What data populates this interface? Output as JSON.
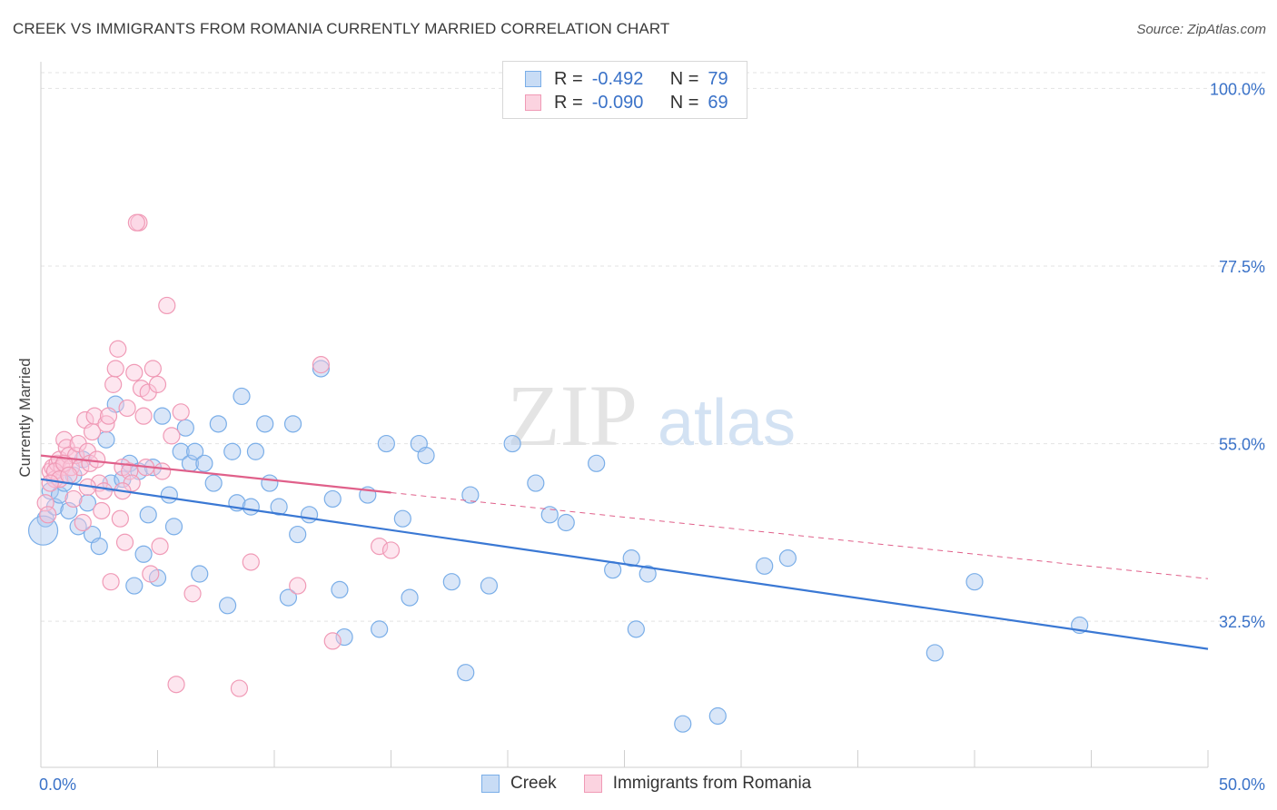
{
  "title": "CREEK VS IMMIGRANTS FROM ROMANIA CURRENTLY MARRIED CORRELATION CHART",
  "source": "Source: ZipAtlas.com",
  "watermark": {
    "zip": "ZIP",
    "atlas": "atlas"
  },
  "legend": {
    "r_label": "R =",
    "n_label": "N =",
    "series": [
      {
        "name": "Creek",
        "r": "-0.492",
        "n": "79",
        "color": "#7aaee8",
        "fill": "#c8dcf5"
      },
      {
        "name": "Immigrants from Romania",
        "r": "-0.090",
        "n": "69",
        "color": "#f09ab6",
        "fill": "#fbd3e0"
      }
    ]
  },
  "chart_data": {
    "type": "scatter",
    "title": "CREEK VS IMMIGRANTS FROM ROMANIA CURRENTLY MARRIED CORRELATION CHART",
    "xlabel": "",
    "ylabel": "Currently Married",
    "xlim": [
      0,
      50
    ],
    "ylim": [
      14,
      102
    ],
    "x_tick_labels": [
      "0.0%",
      "50.0%"
    ],
    "y_ticks": [
      32.5,
      55.0,
      77.5,
      100.0
    ],
    "y_tick_labels": [
      "32.5%",
      "55.0%",
      "77.5%",
      "100.0%"
    ],
    "grid": true,
    "series": [
      {
        "name": "Creek",
        "color": "#3a78d4",
        "trend": {
          "x": [
            0,
            50
          ],
          "y": [
            50.5,
            29.0
          ],
          "style": "solid"
        },
        "points": [
          [
            0.2,
            45.5
          ],
          [
            0.4,
            49.0
          ],
          [
            0.6,
            47.0
          ],
          [
            0.8,
            48.5
          ],
          [
            1.0,
            50.0
          ],
          [
            1.2,
            46.5
          ],
          [
            1.4,
            51.0
          ],
          [
            1.6,
            44.5
          ],
          [
            1.8,
            53.0
          ],
          [
            2.0,
            47.5
          ],
          [
            2.2,
            43.5
          ],
          [
            2.5,
            42.0
          ],
          [
            2.8,
            55.5
          ],
          [
            3.0,
            50.0
          ],
          [
            3.2,
            60.0
          ],
          [
            3.5,
            50.5
          ],
          [
            3.8,
            52.5
          ],
          [
            4.0,
            37.0
          ],
          [
            4.2,
            51.5
          ],
          [
            4.4,
            41.0
          ],
          [
            4.6,
            46.0
          ],
          [
            4.8,
            52.0
          ],
          [
            5.0,
            38.0
          ],
          [
            5.2,
            58.5
          ],
          [
            5.5,
            48.5
          ],
          [
            5.7,
            44.5
          ],
          [
            6.0,
            54.0
          ],
          [
            6.2,
            57.0
          ],
          [
            6.4,
            52.5
          ],
          [
            6.6,
            54.0
          ],
          [
            6.8,
            38.5
          ],
          [
            7.0,
            52.5
          ],
          [
            7.4,
            50.0
          ],
          [
            7.6,
            57.5
          ],
          [
            8.0,
            34.5
          ],
          [
            8.2,
            54.0
          ],
          [
            8.4,
            47.5
          ],
          [
            8.6,
            61.0
          ],
          [
            9.0,
            47.0
          ],
          [
            9.2,
            54.0
          ],
          [
            9.6,
            57.5
          ],
          [
            9.8,
            50.0
          ],
          [
            10.2,
            47.0
          ],
          [
            10.6,
            35.5
          ],
          [
            10.8,
            57.5
          ],
          [
            11.0,
            43.5
          ],
          [
            11.5,
            46.0
          ],
          [
            12.0,
            64.5
          ],
          [
            12.5,
            48.0
          ],
          [
            12.8,
            36.5
          ],
          [
            13.0,
            30.5
          ],
          [
            14.0,
            48.5
          ],
          [
            14.5,
            31.5
          ],
          [
            14.8,
            55.0
          ],
          [
            15.5,
            45.5
          ],
          [
            15.8,
            35.5
          ],
          [
            16.2,
            55.0
          ],
          [
            16.5,
            53.5
          ],
          [
            17.6,
            37.5
          ],
          [
            18.2,
            26.0
          ],
          [
            18.4,
            48.5
          ],
          [
            19.2,
            37.0
          ],
          [
            20.2,
            55.0
          ],
          [
            21.2,
            50.0
          ],
          [
            21.8,
            46.0
          ],
          [
            22.5,
            45.0
          ],
          [
            23.8,
            52.5
          ],
          [
            24.5,
            39.0
          ],
          [
            25.3,
            40.5
          ],
          [
            25.5,
            31.5
          ],
          [
            26.0,
            38.5
          ],
          [
            27.5,
            19.5
          ],
          [
            29.0,
            20.5
          ],
          [
            31.0,
            39.5
          ],
          [
            32.0,
            40.5
          ],
          [
            38.3,
            28.5
          ],
          [
            40.0,
            37.5
          ],
          [
            44.5,
            32.0
          ],
          [
            0.1,
            44.0
          ]
        ]
      },
      {
        "name": "Immigrants from Romania",
        "color": "#e0608a",
        "trend": {
          "x": [
            0,
            15
          ],
          "y": [
            53.5,
            48.8
          ],
          "style": "solid"
        },
        "trend_extension": {
          "x": [
            15,
            50
          ],
          "y": [
            48.8,
            37.9
          ],
          "style": "dashed"
        },
        "points": [
          [
            0.2,
            47.5
          ],
          [
            0.3,
            46.0
          ],
          [
            0.4,
            51.5
          ],
          [
            0.5,
            52.0
          ],
          [
            0.6,
            50.5
          ],
          [
            0.7,
            52.5
          ],
          [
            0.8,
            53.0
          ],
          [
            0.9,
            52.0
          ],
          [
            1.0,
            55.5
          ],
          [
            1.1,
            54.5
          ],
          [
            1.2,
            53.5
          ],
          [
            1.3,
            52.0
          ],
          [
            1.4,
            48.0
          ],
          [
            1.5,
            53.5
          ],
          [
            1.6,
            55.0
          ],
          [
            1.7,
            52.0
          ],
          [
            1.8,
            45.0
          ],
          [
            1.9,
            58.0
          ],
          [
            2.0,
            54.0
          ],
          [
            2.1,
            52.5
          ],
          [
            2.2,
            56.5
          ],
          [
            2.3,
            58.5
          ],
          [
            2.4,
            53.0
          ],
          [
            2.5,
            50.0
          ],
          [
            2.6,
            46.5
          ],
          [
            2.7,
            49.0
          ],
          [
            2.8,
            57.5
          ],
          [
            2.9,
            58.5
          ],
          [
            3.0,
            37.5
          ],
          [
            3.1,
            62.5
          ],
          [
            3.2,
            64.5
          ],
          [
            3.3,
            67.0
          ],
          [
            3.4,
            45.5
          ],
          [
            3.5,
            52.0
          ],
          [
            3.6,
            42.5
          ],
          [
            3.7,
            59.5
          ],
          [
            3.8,
            51.5
          ],
          [
            3.9,
            50.0
          ],
          [
            4.0,
            64.0
          ],
          [
            4.2,
            83.0
          ],
          [
            4.3,
            62.0
          ],
          [
            4.4,
            58.5
          ],
          [
            4.5,
            52.0
          ],
          [
            4.6,
            61.5
          ],
          [
            4.7,
            38.5
          ],
          [
            4.8,
            64.5
          ],
          [
            5.0,
            62.5
          ],
          [
            5.1,
            42.0
          ],
          [
            5.2,
            51.5
          ],
          [
            5.4,
            72.5
          ],
          [
            5.6,
            56.0
          ],
          [
            5.8,
            24.5
          ],
          [
            6.0,
            59.0
          ],
          [
            6.5,
            36.0
          ],
          [
            8.5,
            24.0
          ],
          [
            9.0,
            40.0
          ],
          [
            11.0,
            37.0
          ],
          [
            12.0,
            65.0
          ],
          [
            12.5,
            30.0
          ],
          [
            14.5,
            42.0
          ],
          [
            15.0,
            41.5
          ],
          [
            0.6,
            51.5
          ],
          [
            0.8,
            50.5
          ],
          [
            1.0,
            52.5
          ],
          [
            1.2,
            51.0
          ],
          [
            2.0,
            49.5
          ],
          [
            3.5,
            49.0
          ],
          [
            4.1,
            83.0
          ],
          [
            0.4,
            50.0
          ]
        ]
      }
    ]
  }
}
